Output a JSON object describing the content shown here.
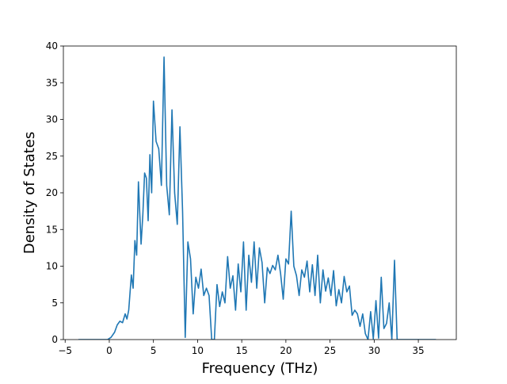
{
  "chart_data": {
    "type": "line",
    "title": "",
    "xlabel": "Frequency (THz)",
    "ylabel": "Density of States",
    "xlim": [
      -5.2,
      39.3
    ],
    "ylim": [
      0,
      40
    ],
    "xticks": [
      -5,
      0,
      5,
      10,
      15,
      20,
      25,
      30,
      35
    ],
    "yticks": [
      0,
      5,
      10,
      15,
      20,
      25,
      30,
      35,
      40
    ],
    "grid": false,
    "legend": "none",
    "line_color": "#1f77b4",
    "series": [
      {
        "x": [
          -3.5,
          -1.0,
          -0.2,
          0.2,
          0.6,
          0.9,
          1.2,
          1.5,
          1.8,
          2.0,
          2.2,
          2.5,
          2.7,
          2.9,
          3.1,
          3.3,
          3.6,
          3.8,
          4.0,
          4.2,
          4.4,
          4.6,
          4.8,
          5.0,
          5.3,
          5.6,
          5.9,
          6.2,
          6.5,
          6.8,
          7.1,
          7.4,
          7.7,
          8.0,
          8.3,
          8.6,
          8.9,
          9.2,
          9.5,
          9.8,
          10.1,
          10.4,
          10.7,
          11.0,
          11.3,
          11.6,
          11.9,
          12.2,
          12.5,
          12.8,
          13.1,
          13.4,
          13.7,
          14.0,
          14.3,
          14.6,
          14.9,
          15.2,
          15.5,
          15.8,
          16.1,
          16.4,
          16.7,
          17.0,
          17.3,
          17.6,
          17.9,
          18.2,
          18.5,
          18.8,
          19.1,
          19.4,
          19.7,
          20.0,
          20.3,
          20.6,
          20.9,
          21.2,
          21.5,
          21.8,
          22.1,
          22.4,
          22.7,
          23.0,
          23.3,
          23.6,
          23.9,
          24.2,
          24.5,
          24.8,
          25.1,
          25.4,
          25.7,
          26.0,
          26.3,
          26.6,
          26.9,
          27.2,
          27.5,
          27.8,
          28.1,
          28.4,
          28.7,
          29.0,
          29.3,
          29.6,
          29.9,
          30.2,
          30.5,
          30.8,
          31.1,
          31.4,
          31.7,
          32.0,
          32.3,
          32.6,
          32.9,
          33.2,
          33.5,
          33.8,
          34.1,
          34.4,
          36.0,
          37.0
        ],
        "y": [
          0,
          0,
          0,
          0.3,
          1.0,
          2.0,
          2.5,
          2.3,
          3.5,
          2.8,
          4.0,
          8.8,
          7.0,
          13.5,
          11.5,
          21.5,
          13.0,
          17.0,
          22.7,
          22.0,
          16.2,
          25.2,
          20.0,
          32.5,
          27.0,
          26.0,
          21.0,
          38.5,
          21.0,
          17.0,
          31.3,
          20.0,
          15.7,
          29.0,
          17.5,
          0.3,
          13.3,
          11.0,
          3.5,
          8.5,
          7.0,
          9.6,
          6.0,
          7.0,
          6.0,
          0,
          0,
          7.5,
          4.5,
          6.5,
          5.0,
          11.3,
          7.0,
          8.7,
          4.0,
          10.3,
          6.5,
          13.3,
          4.0,
          11.5,
          7.8,
          13.3,
          7.0,
          12.5,
          10.5,
          5.0,
          9.8,
          9.0,
          10.1,
          9.5,
          11.5,
          9.0,
          5.5,
          11.0,
          10.3,
          17.5,
          10.0,
          8.7,
          6.0,
          9.5,
          8.5,
          10.7,
          6.5,
          10.2,
          6.0,
          11.5,
          5.0,
          9.5,
          6.6,
          8.4,
          6.0,
          9.4,
          4.6,
          6.8,
          5.0,
          8.6,
          6.5,
          7.3,
          3.3,
          4.0,
          3.5,
          1.8,
          3.5,
          0.8,
          0,
          3.8,
          0.1,
          5.3,
          0.2,
          8.5,
          1.5,
          2.2,
          5.0,
          0,
          10.8,
          0,
          0,
          0,
          0,
          0,
          0,
          0,
          0,
          0
        ]
      }
    ]
  }
}
